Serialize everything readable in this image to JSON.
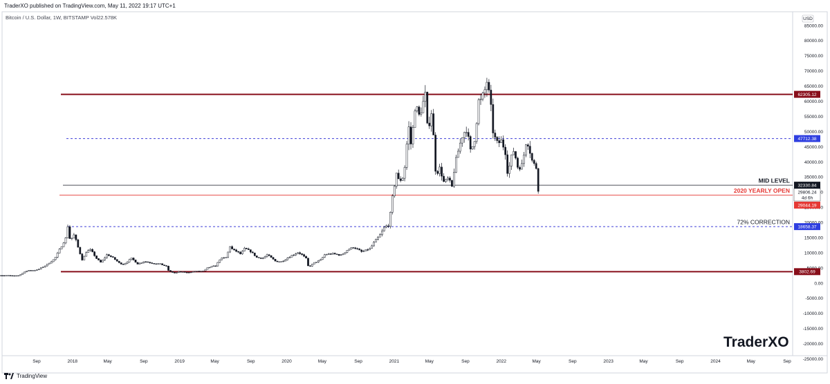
{
  "header": {
    "published": "TraderXO published on TradingView.com, May 11, 2022 19:17 UTC+1",
    "symbol": "Bitcoin / U.S. Dollar, 1W, BITSTAMP",
    "volume": "Vol22.578K"
  },
  "footer": {
    "logo_text": "TradingView"
  },
  "brand": "TraderXO",
  "chart_data": {
    "type": "candlestick",
    "currency_label": "USD",
    "y_ticks": [
      85000,
      80000,
      75000,
      70000,
      65000,
      60000,
      55000,
      50000,
      45000,
      40000,
      35000,
      30000,
      25000,
      20000,
      15000,
      10000,
      5000,
      0,
      -5000,
      -10000,
      -15000,
      -20000,
      -25000
    ],
    "y_tick_labels": [
      "85000.00",
      "80000.00",
      "75000.00",
      "70000.00",
      "65000.00",
      "60000.00",
      "55000.00",
      "50000.00",
      "45000.00",
      "40000.00",
      "35000.00",
      "30000.00",
      "25000.00",
      "20000.00",
      "15000.00",
      "10000.00",
      "5000.00",
      "0.00",
      "-5000.00",
      "-10000.00",
      "-15000.00",
      "-20000.00",
      "-25000.00"
    ],
    "x_tick_labels": [
      "Sep",
      "2018",
      "May",
      "Sep",
      "2019",
      "May",
      "Sep",
      "2020",
      "May",
      "Sep",
      "2021",
      "May",
      "Sep",
      "2022",
      "May",
      "Sep",
      "2023",
      "May",
      "Sep",
      "2024",
      "May",
      "Sep"
    ],
    "x_tick_dates": [
      "2017-09-01",
      "2018-01-01",
      "2018-05-01",
      "2018-09-01",
      "2019-01-01",
      "2019-05-01",
      "2019-09-01",
      "2020-01-01",
      "2020-05-01",
      "2020-09-01",
      "2021-01-01",
      "2021-05-01",
      "2021-09-01",
      "2022-01-01",
      "2022-05-01",
      "2022-09-01",
      "2023-01-01",
      "2023-05-01",
      "2023-09-01",
      "2024-01-01",
      "2024-05-01",
      "2024-09-01"
    ],
    "horizontal_levels": [
      {
        "value": 62305.12,
        "label": "62305.12",
        "style": "solid",
        "color": "#880e1a",
        "width": 2
      },
      {
        "value": 47712.38,
        "label": "47712.38",
        "style": "dashed",
        "color": "#3f3fd8",
        "width": 1
      },
      {
        "value": 32330.84,
        "label": "32330.84",
        "style": "solid",
        "color": "#131722",
        "width": 0.8,
        "annotation": "MID LEVEL"
      },
      {
        "value": 29044.19,
        "label": "29044.19",
        "style": "solid",
        "color": "#e53935",
        "width": 0.8,
        "annotation": "2020 YEARLY OPEN"
      },
      {
        "value": 18658.37,
        "label": "18658.37",
        "style": "dashed",
        "color": "#3f3fd8",
        "width": 1,
        "annotation": "72% CORRECTION"
      },
      {
        "value": 3802.69,
        "label": "3802.69",
        "style": "solid",
        "color": "#880e1a",
        "width": 2
      }
    ],
    "last_price": {
      "value": 29806.24,
      "label": "29806.24",
      "countdown": "4d 6h"
    },
    "series_points": [
      [
        "2017-07-01",
        2500
      ],
      [
        "2017-08-01",
        4200
      ],
      [
        "2017-09-01",
        4300
      ],
      [
        "2017-10-01",
        5800
      ],
      [
        "2017-11-01",
        8000
      ],
      [
        "2017-12-10",
        15000
      ],
      [
        "2017-12-17",
        19500
      ],
      [
        "2017-12-24",
        14000
      ],
      [
        "2018-01-07",
        16000
      ],
      [
        "2018-01-21",
        11500
      ],
      [
        "2018-02-04",
        7500
      ],
      [
        "2018-02-18",
        10500
      ],
      [
        "2018-03-04",
        11000
      ],
      [
        "2018-03-25",
        8000
      ],
      [
        "2018-04-08",
        6800
      ],
      [
        "2018-04-29",
        9500
      ],
      [
        "2018-05-20",
        8300
      ],
      [
        "2018-06-10",
        6600
      ],
      [
        "2018-06-24",
        6200
      ],
      [
        "2018-07-22",
        8200
      ],
      [
        "2018-08-12",
        6300
      ],
      [
        "2018-09-02",
        7200
      ],
      [
        "2018-09-30",
        6600
      ],
      [
        "2018-10-28",
        6300
      ],
      [
        "2018-11-18",
        5500
      ],
      [
        "2018-11-25",
        4000
      ],
      [
        "2018-12-16",
        3300
      ],
      [
        "2018-12-30",
        3800
      ],
      [
        "2019-01-27",
        3500
      ],
      [
        "2019-02-24",
        3900
      ],
      [
        "2019-03-24",
        4000
      ],
      [
        "2019-04-07",
        5100
      ],
      [
        "2019-05-05",
        5800
      ],
      [
        "2019-05-19",
        8000
      ],
      [
        "2019-06-09",
        8500
      ],
      [
        "2019-06-23",
        12500
      ],
      [
        "2019-06-30",
        11000
      ],
      [
        "2019-07-14",
        10500
      ],
      [
        "2019-07-28",
        9600
      ],
      [
        "2019-08-11",
        11500
      ],
      [
        "2019-09-01",
        10400
      ],
      [
        "2019-09-22",
        8400
      ],
      [
        "2019-10-13",
        8300
      ],
      [
        "2019-10-27",
        9400
      ],
      [
        "2019-11-24",
        7200
      ],
      [
        "2019-12-15",
        7100
      ],
      [
        "2020-01-12",
        8800
      ],
      [
        "2020-02-09",
        10200
      ],
      [
        "2020-02-23",
        9300
      ],
      [
        "2020-03-08",
        8000
      ],
      [
        "2020-03-15",
        5300
      ],
      [
        "2020-04-05",
        6800
      ],
      [
        "2020-04-26",
        7700
      ],
      [
        "2020-05-10",
        9500
      ],
      [
        "2020-06-07",
        9700
      ],
      [
        "2020-07-05",
        9200
      ],
      [
        "2020-07-26",
        11000
      ],
      [
        "2020-08-16",
        11900
      ],
      [
        "2020-09-13",
        10300
      ],
      [
        "2020-10-11",
        11400
      ],
      [
        "2020-10-25",
        13500
      ],
      [
        "2020-11-15",
        16000
      ],
      [
        "2020-11-29",
        18500
      ],
      [
        "2020-12-13",
        19200
      ],
      [
        "2020-12-20",
        23500
      ],
      [
        "2020-12-27",
        29000
      ],
      [
        "2021-01-03",
        33000
      ],
      [
        "2021-01-10",
        37000
      ],
      [
        "2021-01-17",
        33500
      ],
      [
        "2021-01-31",
        35000
      ],
      [
        "2021-02-07",
        39000
      ],
      [
        "2021-02-14",
        47000
      ],
      [
        "2021-02-21",
        52000
      ],
      [
        "2021-02-28",
        45000
      ],
      [
        "2021-03-14",
        59000
      ],
      [
        "2021-03-28",
        55000
      ],
      [
        "2021-04-11",
        60000
      ],
      [
        "2021-04-18",
        62500
      ],
      [
        "2021-04-25",
        50000
      ],
      [
        "2021-05-09",
        57000
      ],
      [
        "2021-05-16",
        47000
      ],
      [
        "2021-05-23",
        36000
      ],
      [
        "2021-06-06",
        38000
      ],
      [
        "2021-06-20",
        33000
      ],
      [
        "2021-07-04",
        34500
      ],
      [
        "2021-07-18",
        31500
      ],
      [
        "2021-07-25",
        38000
      ],
      [
        "2021-08-08",
        44000
      ],
      [
        "2021-08-22",
        49000
      ],
      [
        "2021-09-05",
        51000
      ],
      [
        "2021-09-19",
        43000
      ],
      [
        "2021-10-03",
        48000
      ],
      [
        "2021-10-17",
        61000
      ],
      [
        "2021-10-24",
        60000
      ],
      [
        "2021-11-07",
        64000
      ],
      [
        "2021-11-14",
        67000
      ],
      [
        "2021-11-28",
        57000
      ],
      [
        "2021-12-05",
        49000
      ],
      [
        "2021-12-19",
        46000
      ],
      [
        "2022-01-02",
        47000
      ],
      [
        "2022-01-16",
        43000
      ],
      [
        "2022-01-23",
        36000
      ],
      [
        "2022-02-06",
        42000
      ],
      [
        "2022-02-13",
        44000
      ],
      [
        "2022-02-27",
        38000
      ],
      [
        "2022-03-13",
        39000
      ],
      [
        "2022-03-27",
        47000
      ],
      [
        "2022-04-03",
        46000
      ],
      [
        "2022-04-17",
        40000
      ],
      [
        "2022-05-01",
        38000
      ],
      [
        "2022-05-08",
        29806
      ]
    ]
  }
}
